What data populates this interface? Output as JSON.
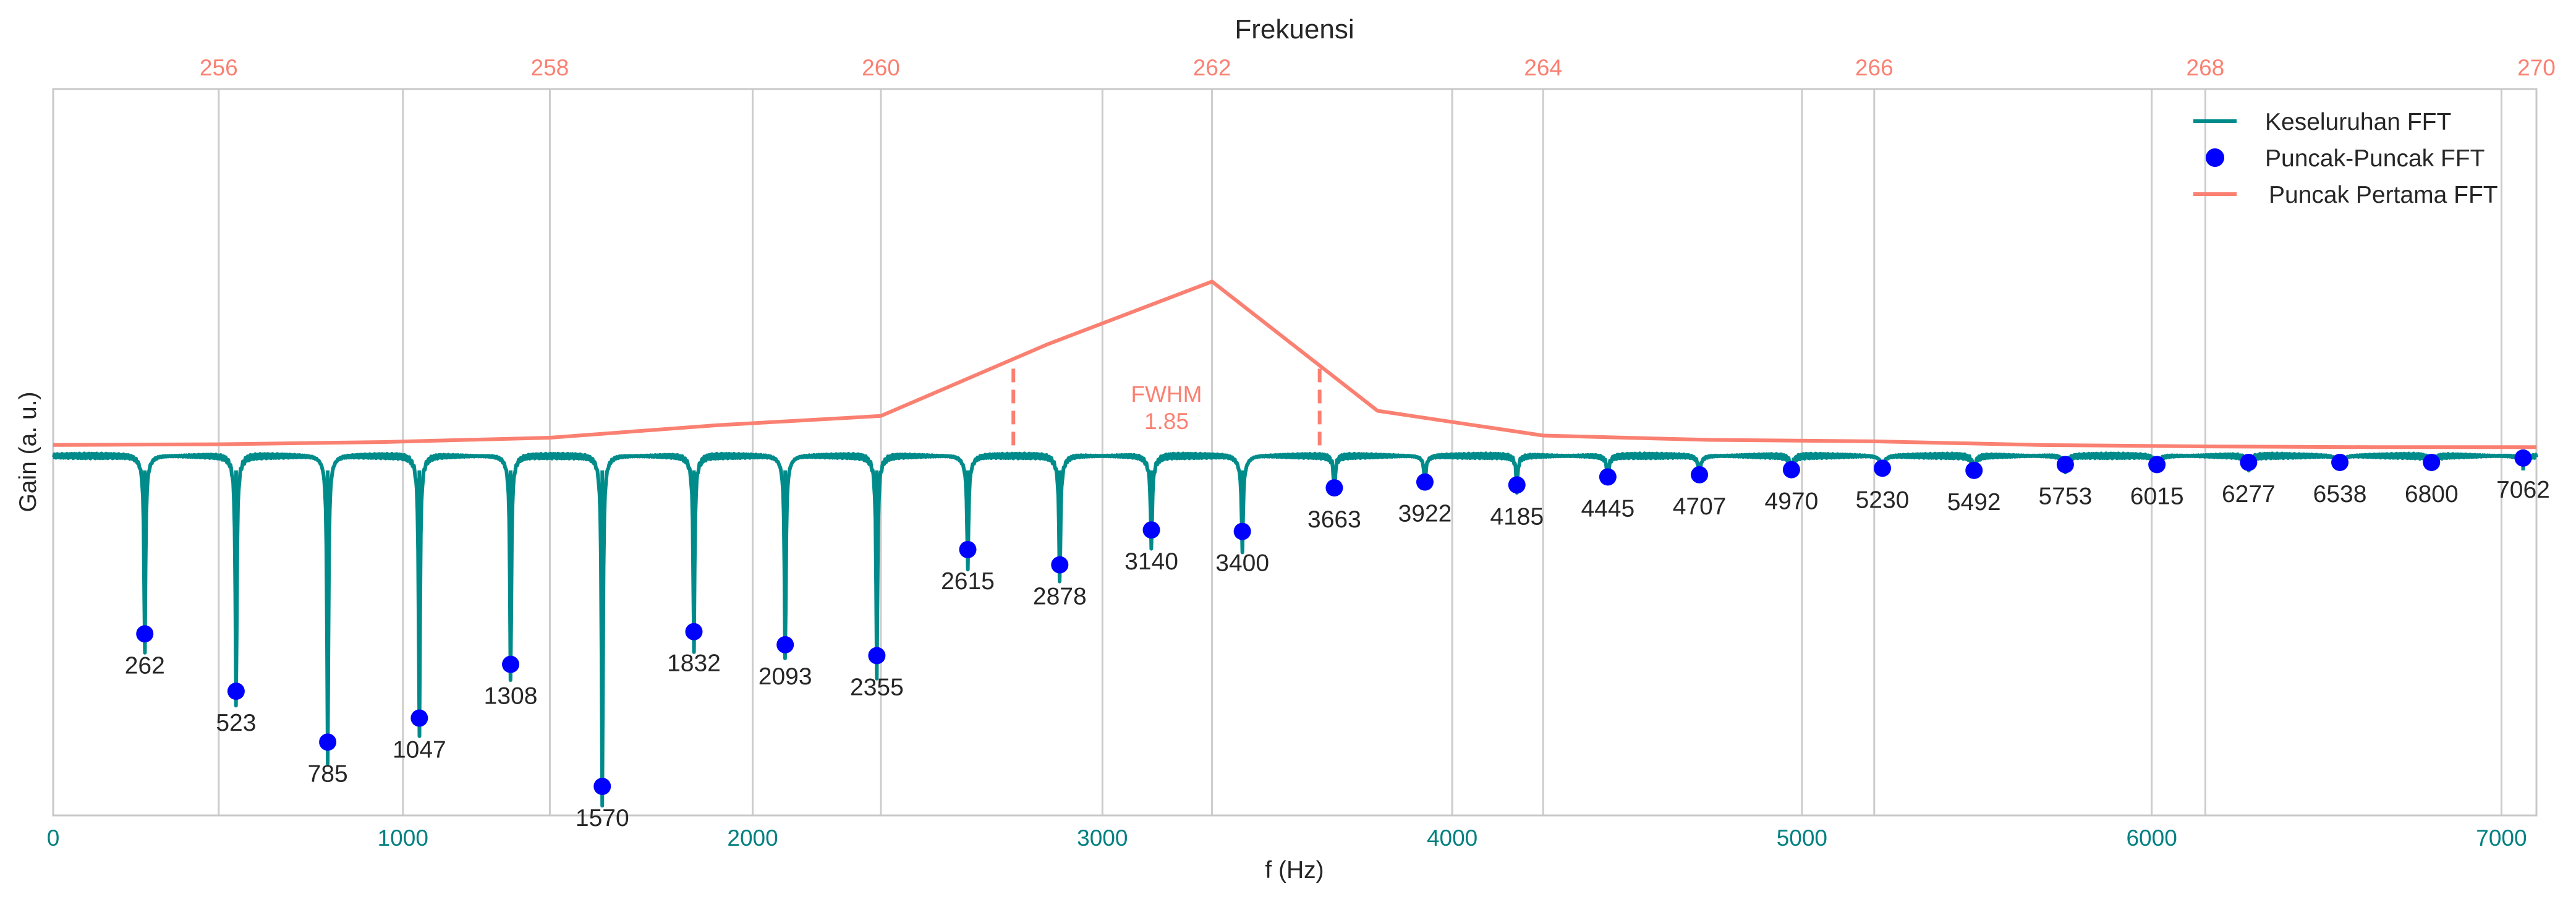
{
  "chart_data": {
    "type": "line",
    "title": "Frekuensi",
    "xlabel": "f (Hz)",
    "ylabel": "Gain (a. u.)",
    "xlim": [
      0,
      7100
    ],
    "x_ticks": [
      0,
      1000,
      2000,
      3000,
      4000,
      5000,
      6000,
      7000
    ],
    "top_xlim": [
      255,
      270
    ],
    "top_x_ticks": [
      256,
      258,
      260,
      262,
      264,
      266,
      268,
      270
    ],
    "ylim": [
      0,
      1
    ],
    "grid": true,
    "legend_position": "top-right",
    "colors": {
      "overall_fft": "#008b8b",
      "peaks": "#0000ff",
      "first_peak": "#fa8072",
      "grid": "#cccccc",
      "axis": "#c8c8c8"
    },
    "series": [
      {
        "name": "Keseluruhan FFT",
        "kind": "line",
        "baseline": 0.495,
        "dips": [
          {
            "x": 262,
            "depth": 0.245
          },
          {
            "x": 523,
            "depth": 0.324
          },
          {
            "x": 785,
            "depth": 0.394
          },
          {
            "x": 1047,
            "depth": 0.361
          },
          {
            "x": 1308,
            "depth": 0.287
          },
          {
            "x": 1570,
            "depth": 0.455
          },
          {
            "x": 1832,
            "depth": 0.242
          },
          {
            "x": 2093,
            "depth": 0.26
          },
          {
            "x": 2355,
            "depth": 0.275
          },
          {
            "x": 2615,
            "depth": 0.129
          },
          {
            "x": 2878,
            "depth": 0.15
          },
          {
            "x": 3140,
            "depth": 0.102
          },
          {
            "x": 3400,
            "depth": 0.104
          },
          {
            "x": 3663,
            "depth": 0.044
          },
          {
            "x": 3922,
            "depth": 0.036
          },
          {
            "x": 4185,
            "depth": 0.04
          },
          {
            "x": 4445,
            "depth": 0.029
          },
          {
            "x": 4707,
            "depth": 0.026
          },
          {
            "x": 4970,
            "depth": 0.019
          },
          {
            "x": 5230,
            "depth": 0.017
          },
          {
            "x": 5492,
            "depth": 0.02
          },
          {
            "x": 5753,
            "depth": 0.012
          },
          {
            "x": 6015,
            "depth": 0.012
          },
          {
            "x": 6277,
            "depth": 0.009
          },
          {
            "x": 6538,
            "depth": 0.009
          },
          {
            "x": 6800,
            "depth": 0.009
          },
          {
            "x": 7062,
            "depth": 0.003
          }
        ]
      },
      {
        "name": "Puncak-Puncak FFT",
        "kind": "scatter",
        "x": [
          262,
          523,
          785,
          1047,
          1308,
          1570,
          1832,
          2093,
          2355,
          2615,
          2878,
          3140,
          3400,
          3663,
          3922,
          4185,
          4445,
          4707,
          4970,
          5230,
          5492,
          5753,
          6015,
          6277,
          6538,
          6800,
          7062
        ],
        "y": [
          0.25,
          0.171,
          0.101,
          0.134,
          0.208,
          0.04,
          0.253,
          0.235,
          0.22,
          0.366,
          0.345,
          0.393,
          0.391,
          0.451,
          0.459,
          0.455,
          0.466,
          0.469,
          0.476,
          0.478,
          0.475,
          0.483,
          0.483,
          0.486,
          0.486,
          0.486,
          0.492
        ],
        "labels": [
          "262",
          "523",
          "785",
          "1047",
          "1308",
          "1570",
          "1832",
          "2093",
          "2355",
          "2615",
          "2878",
          "3140",
          "3400",
          "3663",
          "3922",
          "4185",
          "4445",
          "4707",
          "4970",
          "5230",
          "5492",
          "5753",
          "6015",
          "6277",
          "6538",
          "6800",
          "7062"
        ]
      },
      {
        "name": "Puncak Pertama FFT",
        "kind": "line",
        "axis": "top",
        "x": [
          255,
          256,
          257,
          258,
          259,
          260,
          261,
          262.0,
          263,
          264,
          265,
          266,
          267,
          268,
          269,
          270
        ],
        "y": [
          0.51,
          0.511,
          0.514,
          0.52,
          0.537,
          0.55,
          0.648,
          0.735,
          0.557,
          0.523,
          0.517,
          0.515,
          0.51,
          0.508,
          0.507,
          0.507
        ]
      }
    ],
    "fwhm": {
      "label": "FWHM",
      "value": "1.85",
      "x_left": 260.8,
      "x_right": 262.65,
      "y": 0.615
    }
  }
}
